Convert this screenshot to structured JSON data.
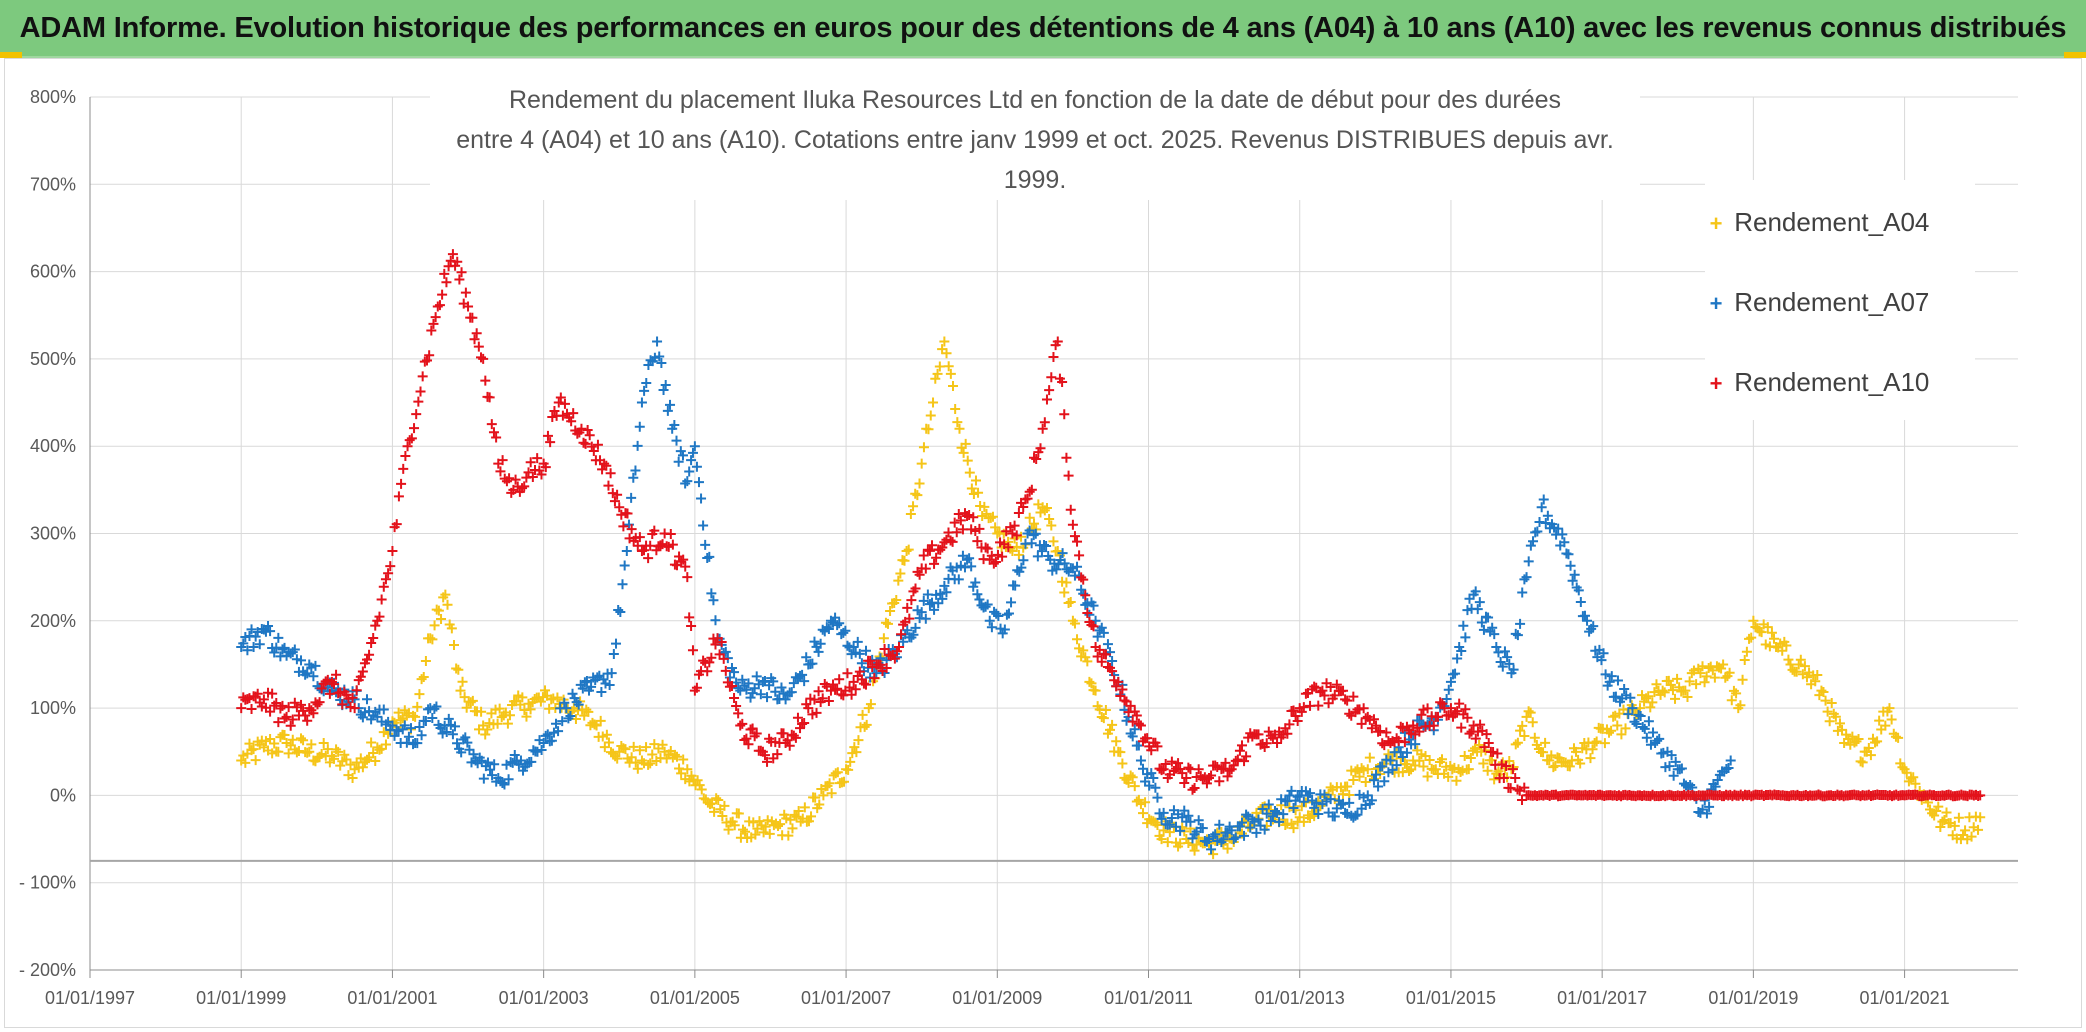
{
  "banner": {
    "title": "ADAM Informe. Evolution historique des performances en euros pour des détentions de 4 ans (A04) à 10 ans (A10) avec les revenus connus distribués"
  },
  "chart": {
    "title_line1": "Rendement du placement Iluka Resources Ltd en fonction de la date de début pour des durées",
    "title_line2": "entre 4 (A04) et 10 ans (A10). Cotations entre janv 1999 et oct. 2025. Revenus DISTRIBUES depuis avr. 1999."
  },
  "colors": {
    "A04": "#f5c518",
    "A07": "#1f77c4",
    "A10": "#e3121b",
    "grid": "#d9d9d9",
    "axis": "#8c8c8c"
  },
  "chart_data": {
    "type": "scatter",
    "title": "Rendement du placement Iluka Resources Ltd en fonction de la date de début pour des durées entre 4 (A04) et 10 ans (A10). Cotations entre janv 1999 et oct. 2025. Revenus DISTRIBUES depuis avr. 1999.",
    "xlabel": "",
    "ylabel": "",
    "x_unit": "years",
    "xlim": [
      1997.0,
      2022.5
    ],
    "ylim": [
      -200,
      800
    ],
    "grid": true,
    "legend_position": "top-right",
    "x_ticks": [
      {
        "value": 1997,
        "label": "01/01/1997"
      },
      {
        "value": 1999,
        "label": "01/01/1999"
      },
      {
        "value": 2001,
        "label": "01/01/2001"
      },
      {
        "value": 2003,
        "label": "01/01/2003"
      },
      {
        "value": 2005,
        "label": "01/01/2005"
      },
      {
        "value": 2007,
        "label": "01/01/2007"
      },
      {
        "value": 2009,
        "label": "01/01/2009"
      },
      {
        "value": 2011,
        "label": "01/01/2011"
      },
      {
        "value": 2013,
        "label": "01/01/2013"
      },
      {
        "value": 2015,
        "label": "01/01/2015"
      },
      {
        "value": 2017,
        "label": "01/01/2017"
      },
      {
        "value": 2019,
        "label": "01/01/2019"
      },
      {
        "value": 2021,
        "label": "01/01/2021"
      }
    ],
    "y_ticks": [
      {
        "value": 800,
        "label": "800%"
      },
      {
        "value": 700,
        "label": "700%"
      },
      {
        "value": 600,
        "label": "600%"
      },
      {
        "value": 500,
        "label": "500%"
      },
      {
        "value": 400,
        "label": "400%"
      },
      {
        "value": 300,
        "label": "300%"
      },
      {
        "value": 200,
        "label": "200%"
      },
      {
        "value": 100,
        "label": "100%"
      },
      {
        "value": 0,
        "label": "0%"
      },
      {
        "value": -100,
        "label": "- 100%"
      },
      {
        "value": -200,
        "label": "- 200%"
      }
    ],
    "series": [
      {
        "name": "Rendement_A04",
        "color": "#f5c518",
        "marker": "+",
        "x": [
          1999.0,
          1999.3,
          1999.6,
          1999.9,
          2000.2,
          2000.5,
          2000.8,
          2001.0,
          2001.3,
          2001.5,
          2001.7,
          2001.9,
          2002.2,
          2002.5,
          2002.8,
          2003.1,
          2003.4,
          2003.7,
          2004.0,
          2004.3,
          2004.6,
          2004.9,
          2005.2,
          2005.5,
          2005.8,
          2006.1,
          2006.4,
          2006.7,
          2007.0,
          2007.3,
          2007.5,
          2007.8,
          2008.0,
          2008.15,
          2008.3,
          2008.5,
          2008.8,
          2009.0,
          2009.2,
          2009.4,
          2009.6,
          2009.8,
          2010.0,
          2010.3,
          2010.6,
          2010.9,
          2011.2,
          2011.5,
          2011.8,
          2012.1,
          2012.4,
          2012.7,
          2013.0,
          2013.3,
          2013.6,
          2013.9,
          2014.2,
          2014.5,
          2014.8,
          2015.1,
          2015.4,
          2015.6,
          2015.8,
          2016.0,
          2016.3,
          2016.6,
          2016.9,
          2017.2,
          2017.5,
          2017.8,
          2018.1,
          2018.3,
          2018.6,
          2018.8,
          2019.0,
          2019.3,
          2019.6,
          2019.9,
          2020.2,
          2020.5,
          2020.8,
          2021.0,
          2021.2,
          2021.5,
          2021.8,
          2022.0
        ],
        "values": [
          40,
          55,
          60,
          50,
          45,
          30,
          55,
          85,
          90,
          180,
          230,
          120,
          80,
          95,
          105,
          110,
          100,
          80,
          50,
          40,
          50,
          30,
          -10,
          -30,
          -45,
          -35,
          -30,
          0,
          30,
          100,
          180,
          280,
          380,
          450,
          520,
          420,
          320,
          300,
          280,
          300,
          330,
          280,
          200,
          120,
          50,
          -10,
          -40,
          -50,
          -55,
          -50,
          -30,
          -20,
          -25,
          -10,
          10,
          30,
          40,
          40,
          30,
          30,
          50,
          25,
          30,
          90,
          40,
          40,
          60,
          80,
          100,
          120,
          120,
          140,
          150,
          100,
          200,
          170,
          150,
          120,
          60,
          50,
          100,
          30,
          5,
          -30,
          -40,
          -25
        ]
      },
      {
        "name": "Rendement_A07",
        "color": "#1f77c4",
        "marker": "+",
        "x": [
          1999.0,
          1999.3,
          1999.6,
          1999.9,
          2000.2,
          2000.5,
          2000.8,
          2001.0,
          2001.3,
          2001.5,
          2001.8,
          2002.1,
          2002.4,
          2002.7,
          2003.0,
          2003.3,
          2003.6,
          2003.9,
          2004.1,
          2004.3,
          2004.5,
          2004.7,
          2004.9,
          2005.0,
          2005.3,
          2005.6,
          2005.9,
          2006.2,
          2006.5,
          2006.8,
          2007.1,
          2007.4,
          2007.7,
          2008.0,
          2008.3,
          2008.6,
          2008.9,
          2009.1,
          2009.4,
          2009.7,
          2010.0,
          2010.3,
          2010.6,
          2010.9,
          2011.2,
          2011.5,
          2011.8,
          2012.1,
          2012.4,
          2012.7,
          2013.0,
          2013.3,
          2013.6,
          2013.9,
          2014.2,
          2014.5,
          2014.8,
          2015.0,
          2015.3,
          2015.6,
          2015.8,
          2016.0,
          2016.2,
          2016.5,
          2016.8,
          2017.1,
          2017.4,
          2017.7,
          2018.0,
          2018.3,
          2018.5,
          2018.7
        ],
        "values": [
          170,
          190,
          160,
          150,
          120,
          110,
          90,
          80,
          60,
          100,
          70,
          40,
          20,
          40,
          60,
          100,
          120,
          140,
          280,
          450,
          520,
          420,
          360,
          400,
          180,
          120,
          130,
          110,
          150,
          200,
          170,
          140,
          170,
          210,
          240,
          270,
          200,
          190,
          300,
          270,
          260,
          200,
          130,
          40,
          -20,
          -30,
          -50,
          -40,
          -30,
          -20,
          0,
          -10,
          -20,
          0,
          40,
          70,
          90,
          130,
          230,
          170,
          140,
          250,
          330,
          290,
          200,
          130,
          100,
          60,
          30,
          -20,
          10,
          40
        ]
      },
      {
        "name": "Rendement_A10",
        "color": "#e3121b",
        "marker": "+",
        "x": [
          1999.0,
          1999.3,
          1999.6,
          1999.9,
          2000.2,
          2000.5,
          2000.8,
          2001.0,
          2001.2,
          2001.4,
          2001.6,
          2001.8,
          2002.0,
          2002.2,
          2002.4,
          2002.6,
          2002.8,
          2003.0,
          2003.2,
          2003.5,
          2003.8,
          2004.0,
          2004.3,
          2004.6,
          2004.9,
          2005.0,
          2005.3,
          2005.6,
          2005.9,
          2006.2,
          2006.5,
          2006.8,
          2007.1,
          2007.4,
          2007.7,
          2008.0,
          2008.3,
          2008.6,
          2008.9,
          2009.2,
          2009.4,
          2009.6,
          2009.8,
          2010.0,
          2010.3,
          2010.6,
          2010.9,
          2011.2,
          2011.5,
          2011.8,
          2012.1,
          2012.4,
          2012.7,
          2013.0,
          2013.3,
          2013.6,
          2013.9,
          2014.2,
          2014.5,
          2014.8,
          2015.0,
          2015.3,
          2015.5,
          2015.7,
          2015.85,
          2016.0,
          2016.5,
          2017.0,
          2017.5,
          2018.0,
          2018.5,
          2019.0,
          2019.5,
          2020.0,
          2020.5,
          2021.0,
          2021.5,
          2022.0
        ],
        "values": [
          100,
          110,
          90,
          100,
          130,
          100,
          200,
          280,
          400,
          480,
          560,
          620,
          560,
          500,
          380,
          350,
          370,
          380,
          450,
          420,
          380,
          330,
          280,
          300,
          250,
          120,
          180,
          80,
          50,
          60,
          100,
          120,
          130,
          150,
          170,
          260,
          290,
          320,
          270,
          300,
          340,
          420,
          520,
          310,
          170,
          130,
          80,
          30,
          20,
          20,
          30,
          70,
          60,
          100,
          120,
          110,
          90,
          60,
          80,
          90,
          100,
          80,
          60,
          20,
          20,
          0,
          0,
          0,
          0,
          0,
          0,
          0,
          0,
          0,
          0,
          0,
          0,
          0
        ]
      }
    ]
  },
  "legend": {
    "items": [
      {
        "label": "Rendement_A04",
        "marker": "+",
        "color": "#f5c518"
      },
      {
        "label": "Rendement_A07",
        "marker": "+",
        "color": "#1f77c4"
      },
      {
        "label": "Rendement_A10",
        "marker": "+",
        "color": "#e3121b"
      }
    ]
  }
}
